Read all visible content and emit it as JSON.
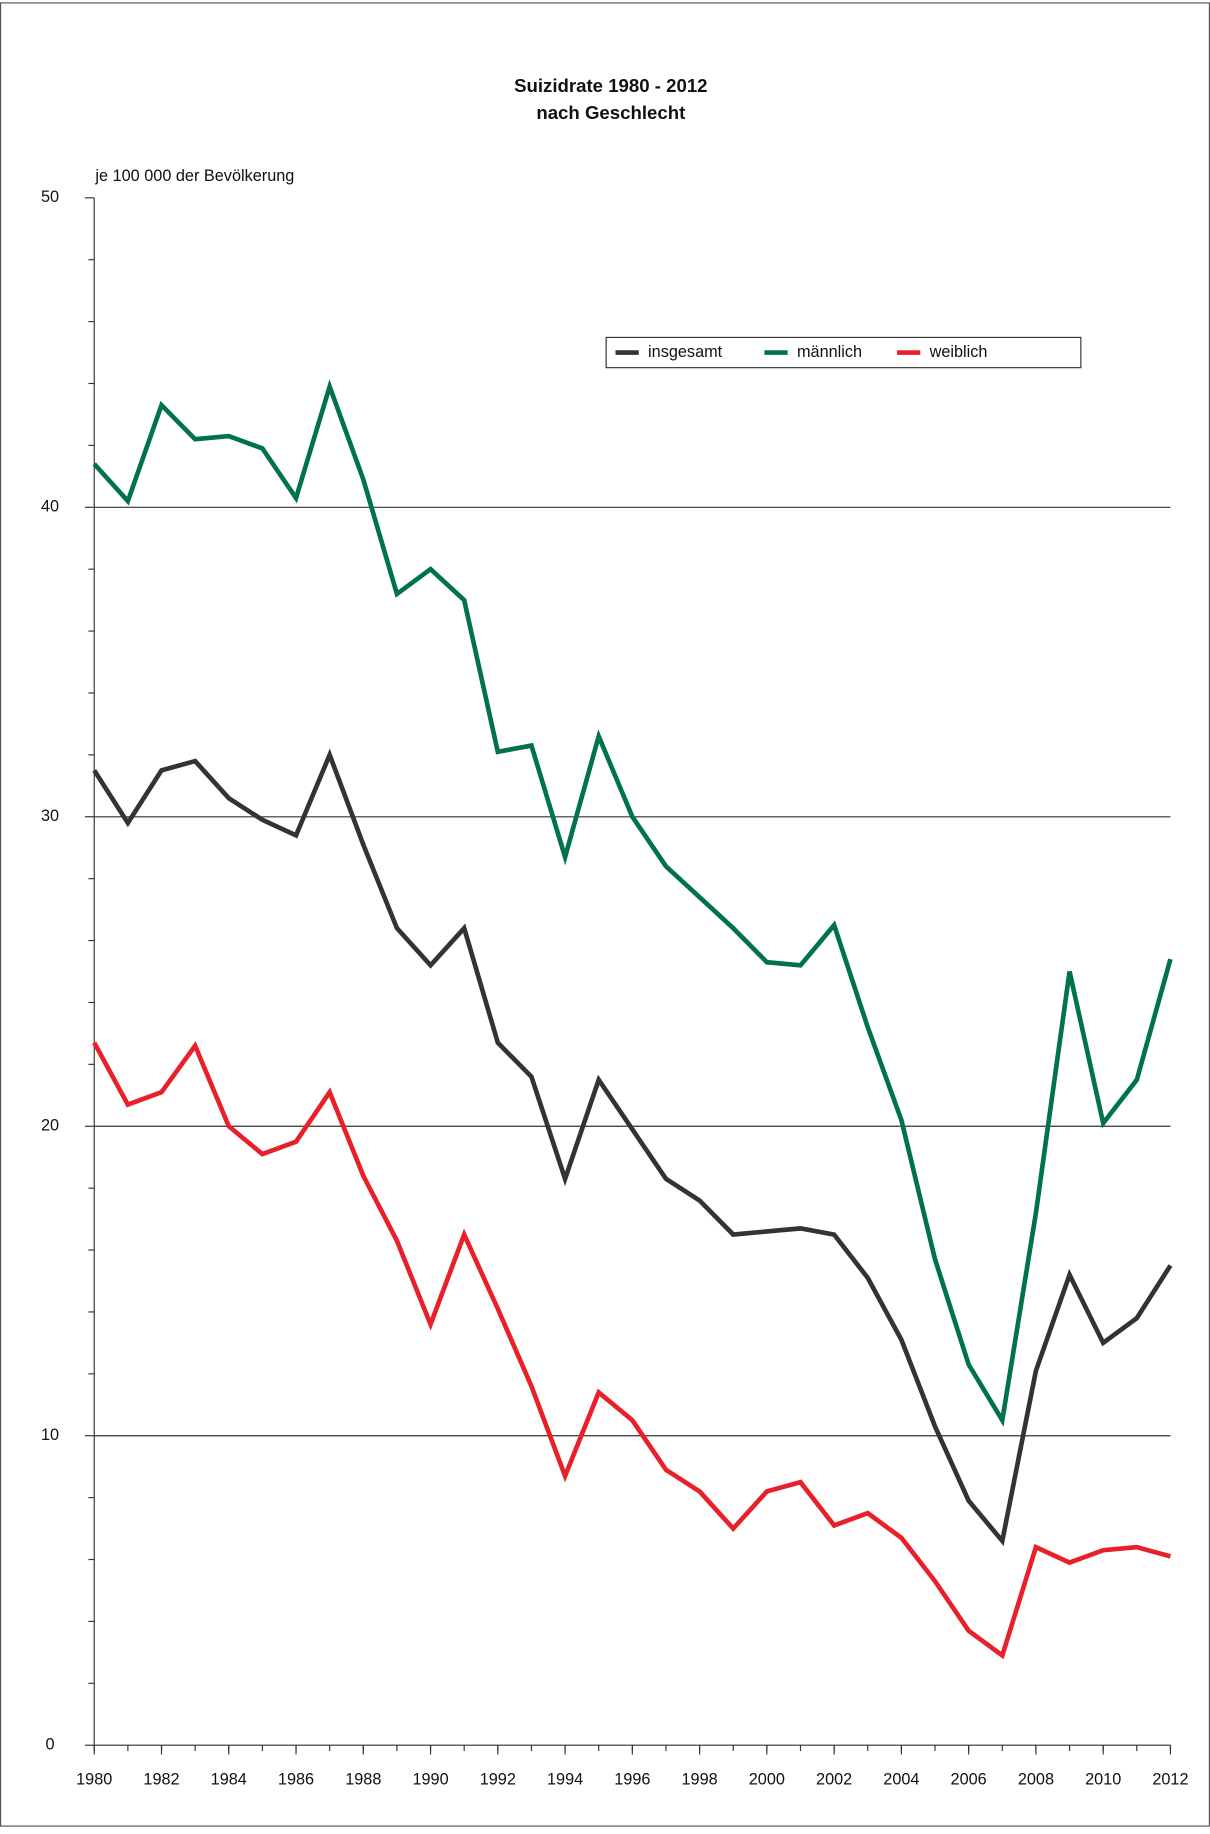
{
  "chart_data": {
    "type": "line",
    "title": "Suizidrate 1980 - 2012",
    "subtitle": "nach Geschlecht",
    "y_label": "je 100 000 der Bevölkerung",
    "x": [
      1980,
      1981,
      1982,
      1983,
      1984,
      1985,
      1986,
      1987,
      1988,
      1989,
      1990,
      1991,
      1992,
      1993,
      1994,
      1995,
      1996,
      1997,
      1998,
      1999,
      2000,
      2001,
      2002,
      2003,
      2004,
      2005,
      2006,
      2007,
      2008,
      2009,
      2010,
      2011,
      2012
    ],
    "series": [
      {
        "name": "insgesamt",
        "color": "#333333",
        "values": [
          31.5,
          29.8,
          31.5,
          31.8,
          30.6,
          29.9,
          29.4,
          32.0,
          29.1,
          26.4,
          25.2,
          26.4,
          22.7,
          21.6,
          18.3,
          21.5,
          19.9,
          18.3,
          17.6,
          16.5,
          16.6,
          16.7,
          16.5,
          15.1,
          13.1,
          10.3,
          7.9,
          6.6,
          12.1,
          15.2,
          13.0,
          13.8,
          15.5
        ]
      },
      {
        "name": "männlich",
        "color": "#00734a",
        "values": [
          41.4,
          40.2,
          43.3,
          42.2,
          42.3,
          41.9,
          40.3,
          43.9,
          40.9,
          37.2,
          38.0,
          37.0,
          32.1,
          32.3,
          28.7,
          32.6,
          30.0,
          28.4,
          27.4,
          26.4,
          25.3,
          25.2,
          26.5,
          23.2,
          20.2,
          15.7,
          12.3,
          10.5,
          17.2,
          25.0,
          20.1,
          21.5,
          25.4
        ]
      },
      {
        "name": "weiblich",
        "color": "#e8202a",
        "values": [
          22.7,
          20.7,
          21.1,
          22.6,
          20.0,
          19.1,
          19.5,
          21.1,
          18.4,
          16.3,
          13.6,
          16.5,
          14.1,
          11.6,
          8.7,
          11.4,
          10.5,
          8.9,
          8.2,
          7.0,
          8.2,
          8.5,
          7.1,
          7.5,
          6.7,
          5.3,
          3.7,
          2.9,
          6.4,
          5.9,
          6.3,
          6.4,
          6.1
        ]
      }
    ],
    "xlim": [
      1980,
      2012
    ],
    "xticks": [
      1980,
      1982,
      1984,
      1986,
      1988,
      1990,
      1992,
      1994,
      1996,
      1998,
      2000,
      2002,
      2004,
      2006,
      2008,
      2010,
      2012
    ],
    "ylim": [
      0,
      50
    ],
    "yticks": [
      0,
      10,
      20,
      30,
      40,
      50
    ],
    "yminor_ticks": [
      2,
      4,
      6,
      8,
      12,
      14,
      16,
      18,
      22,
      24,
      26,
      28,
      32,
      34,
      36,
      38,
      42,
      44,
      46,
      48
    ],
    "grid": true,
    "legend": "top-right"
  }
}
